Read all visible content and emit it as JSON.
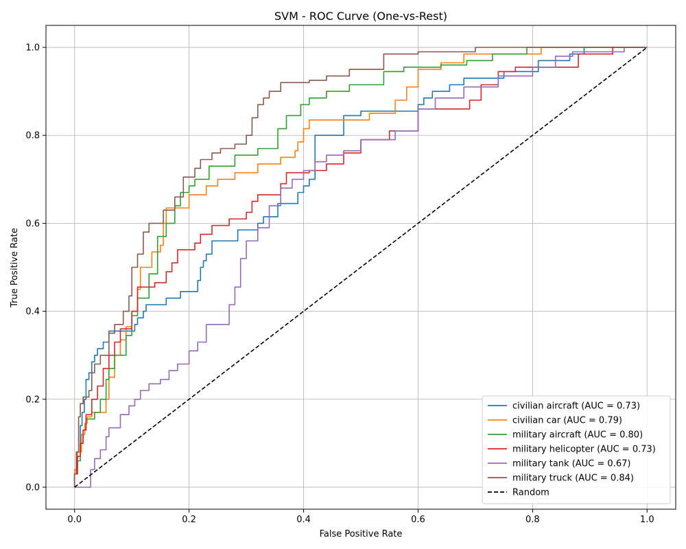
{
  "chart_data": {
    "type": "line",
    "title": "SVM - ROC Curve (One-vs-Rest)",
    "xlabel": "False Positive Rate",
    "ylabel": "True Positive Rate",
    "xlim": [
      -0.05,
      1.05
    ],
    "ylim": [
      -0.05,
      1.05
    ],
    "xticks": [
      "0.0",
      "0.2",
      "0.4",
      "0.6",
      "0.8",
      "1.0"
    ],
    "yticks": [
      "0.0",
      "0.2",
      "0.4",
      "0.6",
      "0.8",
      "1.0"
    ],
    "grid": true,
    "legend_position": "lower-right",
    "series": [
      {
        "name": "civilian aircraft (AUC = 0.73)",
        "color": "#1f77b4",
        "x": [
          0.0,
          0.0,
          0.005,
          0.005,
          0.01,
          0.01,
          0.013,
          0.013,
          0.017,
          0.017,
          0.02,
          0.02,
          0.025,
          0.025,
          0.03,
          0.03,
          0.035,
          0.035,
          0.04,
          0.04,
          0.05,
          0.05,
          0.06,
          0.06,
          0.105,
          0.105,
          0.11,
          0.11,
          0.12,
          0.12,
          0.125,
          0.125,
          0.16,
          0.16,
          0.185,
          0.185,
          0.215,
          0.215,
          0.22,
          0.22,
          0.225,
          0.225,
          0.23,
          0.23,
          0.24,
          0.24,
          0.285,
          0.285,
          0.32,
          0.32,
          0.33,
          0.33,
          0.355,
          0.355,
          0.39,
          0.39,
          0.4,
          0.4,
          0.41,
          0.41,
          0.42,
          0.42,
          0.47,
          0.47,
          0.5,
          0.5,
          0.6,
          0.6,
          0.61,
          0.61,
          0.625,
          0.625,
          0.655,
          0.655,
          0.68,
          0.68,
          0.695,
          0.695,
          0.75,
          0.75,
          0.79,
          0.79,
          0.81,
          0.81,
          0.865,
          0.865,
          0.89,
          0.89,
          0.915,
          0.915,
          1.0
        ],
        "y": [
          0.0,
          0.04,
          0.04,
          0.08,
          0.08,
          0.14,
          0.14,
          0.17,
          0.17,
          0.2,
          0.2,
          0.245,
          0.245,
          0.26,
          0.26,
          0.285,
          0.285,
          0.3,
          0.3,
          0.315,
          0.315,
          0.33,
          0.33,
          0.355,
          0.355,
          0.37,
          0.37,
          0.385,
          0.385,
          0.4,
          0.4,
          0.415,
          0.415,
          0.43,
          0.43,
          0.445,
          0.445,
          0.47,
          0.47,
          0.5,
          0.5,
          0.515,
          0.515,
          0.53,
          0.53,
          0.56,
          0.56,
          0.585,
          0.585,
          0.6,
          0.6,
          0.615,
          0.615,
          0.645,
          0.645,
          0.67,
          0.67,
          0.685,
          0.685,
          0.7,
          0.7,
          0.8,
          0.8,
          0.845,
          0.845,
          0.855,
          0.855,
          0.87,
          0.87,
          0.885,
          0.885,
          0.9,
          0.9,
          0.915,
          0.915,
          0.93,
          0.93,
          0.93,
          0.93,
          0.945,
          0.945,
          0.945,
          0.945,
          0.97,
          0.97,
          0.985,
          0.985,
          1.0,
          1.0,
          1.0,
          1.0
        ]
      },
      {
        "name": "civilian car (AUC = 0.79)",
        "color": "#ff7f0e",
        "x": [
          0.0,
          0.0,
          0.005,
          0.005,
          0.012,
          0.012,
          0.018,
          0.018,
          0.022,
          0.022,
          0.03,
          0.03,
          0.055,
          0.055,
          0.06,
          0.06,
          0.07,
          0.07,
          0.08,
          0.08,
          0.09,
          0.09,
          0.1,
          0.1,
          0.11,
          0.11,
          0.115,
          0.115,
          0.135,
          0.135,
          0.15,
          0.15,
          0.155,
          0.155,
          0.16,
          0.16,
          0.2,
          0.2,
          0.23,
          0.23,
          0.25,
          0.25,
          0.28,
          0.28,
          0.32,
          0.32,
          0.36,
          0.36,
          0.385,
          0.385,
          0.39,
          0.39,
          0.4,
          0.4,
          0.41,
          0.41,
          0.515,
          0.515,
          0.56,
          0.56,
          0.58,
          0.58,
          0.6,
          0.6,
          0.64,
          0.64,
          0.68,
          0.68,
          0.815,
          0.815,
          1.0
        ],
        "y": [
          0.0,
          0.04,
          0.04,
          0.08,
          0.08,
          0.12,
          0.12,
          0.145,
          0.145,
          0.16,
          0.16,
          0.17,
          0.17,
          0.2,
          0.2,
          0.25,
          0.25,
          0.3,
          0.3,
          0.335,
          0.335,
          0.365,
          0.365,
          0.4,
          0.4,
          0.45,
          0.45,
          0.5,
          0.5,
          0.535,
          0.535,
          0.55,
          0.55,
          0.6,
          0.6,
          0.635,
          0.635,
          0.665,
          0.665,
          0.685,
          0.685,
          0.7,
          0.7,
          0.715,
          0.715,
          0.735,
          0.735,
          0.75,
          0.75,
          0.765,
          0.765,
          0.785,
          0.785,
          0.815,
          0.815,
          0.835,
          0.835,
          0.85,
          0.85,
          0.88,
          0.88,
          0.91,
          0.91,
          0.95,
          0.95,
          0.965,
          0.965,
          0.985,
          0.985,
          1.0,
          1.0
        ]
      },
      {
        "name": "military aircraft (AUC = 0.80)",
        "color": "#2ca02c",
        "x": [
          0.0,
          0.0,
          0.005,
          0.005,
          0.01,
          0.01,
          0.015,
          0.015,
          0.02,
          0.02,
          0.035,
          0.035,
          0.045,
          0.045,
          0.055,
          0.055,
          0.06,
          0.06,
          0.07,
          0.07,
          0.09,
          0.09,
          0.1,
          0.1,
          0.11,
          0.11,
          0.13,
          0.13,
          0.145,
          0.145,
          0.16,
          0.16,
          0.175,
          0.175,
          0.185,
          0.185,
          0.2,
          0.2,
          0.21,
          0.21,
          0.235,
          0.235,
          0.28,
          0.28,
          0.32,
          0.32,
          0.355,
          0.355,
          0.37,
          0.37,
          0.395,
          0.395,
          0.41,
          0.41,
          0.44,
          0.44,
          0.48,
          0.48,
          0.54,
          0.54,
          0.575,
          0.575,
          0.64,
          0.64,
          0.685,
          0.685,
          0.73,
          0.73,
          0.79,
          0.79,
          1.0
        ],
        "y": [
          0.0,
          0.03,
          0.03,
          0.06,
          0.06,
          0.1,
          0.1,
          0.13,
          0.13,
          0.155,
          0.155,
          0.17,
          0.17,
          0.2,
          0.2,
          0.245,
          0.245,
          0.27,
          0.27,
          0.3,
          0.3,
          0.345,
          0.345,
          0.39,
          0.39,
          0.43,
          0.43,
          0.485,
          0.485,
          0.57,
          0.57,
          0.6,
          0.6,
          0.64,
          0.64,
          0.67,
          0.67,
          0.685,
          0.685,
          0.7,
          0.7,
          0.73,
          0.73,
          0.755,
          0.755,
          0.77,
          0.77,
          0.815,
          0.815,
          0.845,
          0.845,
          0.87,
          0.87,
          0.885,
          0.885,
          0.9,
          0.9,
          0.915,
          0.915,
          0.945,
          0.945,
          0.955,
          0.955,
          0.96,
          0.96,
          0.97,
          0.97,
          0.985,
          0.985,
          1.0,
          1.0
        ]
      },
      {
        "name": "military helicopter (AUC = 0.73)",
        "color": "#d62728",
        "x": [
          0.0,
          0.0,
          0.005,
          0.005,
          0.01,
          0.01,
          0.015,
          0.015,
          0.02,
          0.02,
          0.03,
          0.03,
          0.04,
          0.04,
          0.05,
          0.05,
          0.06,
          0.06,
          0.07,
          0.07,
          0.08,
          0.08,
          0.1,
          0.1,
          0.11,
          0.11,
          0.14,
          0.14,
          0.16,
          0.16,
          0.17,
          0.17,
          0.18,
          0.18,
          0.21,
          0.21,
          0.22,
          0.22,
          0.24,
          0.24,
          0.27,
          0.27,
          0.3,
          0.3,
          0.31,
          0.31,
          0.32,
          0.32,
          0.36,
          0.36,
          0.37,
          0.37,
          0.41,
          0.41,
          0.44,
          0.44,
          0.47,
          0.47,
          0.5,
          0.5,
          0.55,
          0.55,
          0.6,
          0.6,
          0.69,
          0.69,
          0.71,
          0.71,
          0.74,
          0.74,
          0.77,
          0.77,
          0.88,
          0.88,
          0.94,
          0.94,
          1.0
        ],
        "y": [
          0.0,
          0.03,
          0.03,
          0.07,
          0.07,
          0.1,
          0.1,
          0.13,
          0.13,
          0.165,
          0.165,
          0.2,
          0.2,
          0.23,
          0.23,
          0.27,
          0.27,
          0.3,
          0.3,
          0.33,
          0.33,
          0.36,
          0.36,
          0.4,
          0.4,
          0.455,
          0.455,
          0.465,
          0.465,
          0.49,
          0.49,
          0.51,
          0.51,
          0.54,
          0.54,
          0.555,
          0.555,
          0.575,
          0.575,
          0.595,
          0.595,
          0.61,
          0.61,
          0.625,
          0.625,
          0.65,
          0.65,
          0.665,
          0.665,
          0.69,
          0.69,
          0.715,
          0.715,
          0.72,
          0.72,
          0.735,
          0.735,
          0.76,
          0.76,
          0.79,
          0.79,
          0.81,
          0.81,
          0.86,
          0.86,
          0.88,
          0.88,
          0.915,
          0.915,
          0.945,
          0.945,
          0.955,
          0.955,
          0.985,
          0.985,
          1.0,
          1.0
        ]
      },
      {
        "name": "military tank (AUC = 0.67)",
        "color": "#9467bd",
        "x": [
          0.0,
          0.0,
          0.028,
          0.028,
          0.035,
          0.035,
          0.045,
          0.045,
          0.055,
          0.055,
          0.06,
          0.06,
          0.08,
          0.08,
          0.095,
          0.095,
          0.105,
          0.105,
          0.115,
          0.115,
          0.13,
          0.13,
          0.15,
          0.15,
          0.165,
          0.165,
          0.18,
          0.18,
          0.2,
          0.2,
          0.215,
          0.215,
          0.23,
          0.23,
          0.27,
          0.27,
          0.28,
          0.28,
          0.29,
          0.29,
          0.3,
          0.3,
          0.32,
          0.32,
          0.34,
          0.34,
          0.36,
          0.36,
          0.38,
          0.38,
          0.4,
          0.4,
          0.42,
          0.42,
          0.44,
          0.44,
          0.47,
          0.47,
          0.5,
          0.5,
          0.56,
          0.56,
          0.6,
          0.6,
          0.63,
          0.63,
          0.68,
          0.68,
          0.74,
          0.74,
          0.8,
          0.8,
          0.84,
          0.84,
          0.87,
          0.87,
          0.96,
          0.96,
          1.0
        ],
        "y": [
          0.0,
          0.0,
          0.0,
          0.04,
          0.04,
          0.065,
          0.065,
          0.085,
          0.085,
          0.115,
          0.115,
          0.135,
          0.135,
          0.165,
          0.165,
          0.185,
          0.185,
          0.2,
          0.2,
          0.22,
          0.22,
          0.235,
          0.235,
          0.245,
          0.245,
          0.265,
          0.265,
          0.28,
          0.28,
          0.31,
          0.31,
          0.33,
          0.33,
          0.37,
          0.37,
          0.415,
          0.415,
          0.455,
          0.455,
          0.52,
          0.52,
          0.56,
          0.56,
          0.59,
          0.59,
          0.64,
          0.64,
          0.68,
          0.68,
          0.7,
          0.7,
          0.72,
          0.72,
          0.74,
          0.74,
          0.755,
          0.755,
          0.765,
          0.765,
          0.79,
          0.79,
          0.81,
          0.81,
          0.86,
          0.86,
          0.885,
          0.885,
          0.91,
          0.91,
          0.935,
          0.935,
          0.955,
          0.955,
          0.98,
          0.98,
          0.99,
          0.99,
          1.0,
          1.0
        ]
      },
      {
        "name": "military truck (AUC = 0.84)",
        "color": "#8c564b",
        "x": [
          0.0,
          0.0,
          0.003,
          0.003,
          0.007,
          0.007,
          0.01,
          0.01,
          0.015,
          0.015,
          0.025,
          0.025,
          0.03,
          0.03,
          0.035,
          0.035,
          0.045,
          0.045,
          0.06,
          0.06,
          0.07,
          0.07,
          0.085,
          0.085,
          0.095,
          0.095,
          0.1,
          0.1,
          0.11,
          0.11,
          0.12,
          0.12,
          0.13,
          0.13,
          0.155,
          0.155,
          0.175,
          0.175,
          0.19,
          0.19,
          0.21,
          0.21,
          0.22,
          0.22,
          0.24,
          0.24,
          0.255,
          0.255,
          0.28,
          0.28,
          0.3,
          0.3,
          0.31,
          0.31,
          0.32,
          0.32,
          0.33,
          0.33,
          0.34,
          0.34,
          0.36,
          0.36,
          0.41,
          0.41,
          0.44,
          0.44,
          0.48,
          0.48,
          0.54,
          0.54,
          0.6,
          0.6,
          0.7,
          0.7,
          1.0
        ],
        "y": [
          0.0,
          0.03,
          0.03,
          0.08,
          0.08,
          0.16,
          0.16,
          0.19,
          0.19,
          0.205,
          0.205,
          0.22,
          0.22,
          0.26,
          0.26,
          0.28,
          0.28,
          0.3,
          0.3,
          0.35,
          0.35,
          0.37,
          0.37,
          0.4,
          0.4,
          0.435,
          0.435,
          0.5,
          0.5,
          0.53,
          0.53,
          0.58,
          0.58,
          0.6,
          0.6,
          0.63,
          0.63,
          0.66,
          0.66,
          0.705,
          0.705,
          0.725,
          0.725,
          0.745,
          0.745,
          0.76,
          0.76,
          0.77,
          0.77,
          0.78,
          0.78,
          0.8,
          0.8,
          0.84,
          0.84,
          0.87,
          0.87,
          0.885,
          0.885,
          0.9,
          0.9,
          0.92,
          0.92,
          0.925,
          0.925,
          0.935,
          0.935,
          0.95,
          0.95,
          0.985,
          0.985,
          0.99,
          0.99,
          1.0,
          1.0
        ]
      },
      {
        "name": "Random",
        "color": "#000000",
        "dashed": true,
        "x": [
          0.0,
          1.0
        ],
        "y": [
          0.0,
          1.0
        ]
      }
    ]
  }
}
